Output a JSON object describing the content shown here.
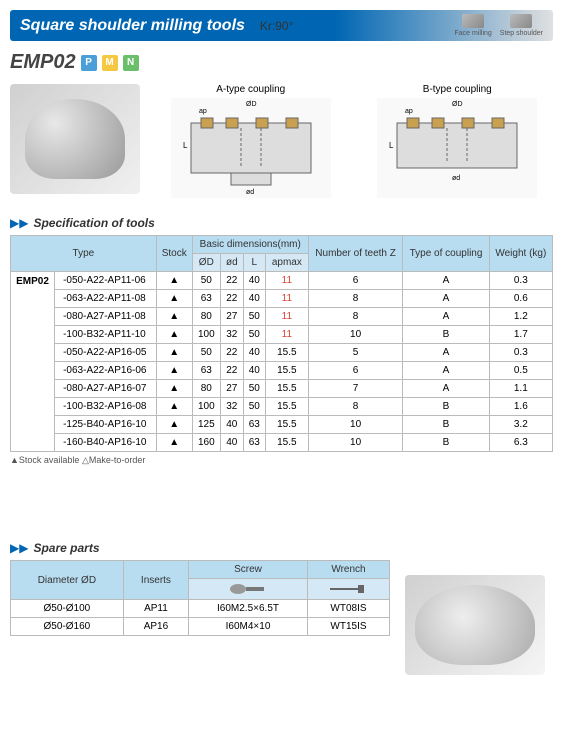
{
  "header": {
    "title": "Square shoulder milling tools",
    "sub": "Kr:90°",
    "icon1": "Face milling",
    "icon2": "Step shoulder"
  },
  "model": {
    "name": "EMP02",
    "badges": [
      "P",
      "M",
      "N"
    ]
  },
  "diagrams": {
    "a": "A-type coupling",
    "b": "B-type coupling"
  },
  "spec": {
    "title": "Specification of tools",
    "headers": {
      "type": "Type",
      "stock": "Stock",
      "basic": "Basic dimensions(mm)",
      "D": "ØD",
      "d": "ød",
      "L": "L",
      "ap": "apmax",
      "teeth": "Number of teeth Z",
      "coupling": "Type of coupling",
      "weight": "Weight (kg)"
    },
    "family": "EMP02",
    "rows": [
      {
        "code": "-050-A22-AP11-06",
        "stock": "▲",
        "D": "50",
        "d": "22",
        "L": "40",
        "ap": "11",
        "apred": true,
        "z": "6",
        "c": "A",
        "w": "0.3"
      },
      {
        "code": "-063-A22-AP11-08",
        "stock": "▲",
        "D": "63",
        "d": "22",
        "L": "40",
        "ap": "11",
        "apred": true,
        "z": "8",
        "c": "A",
        "w": "0.6"
      },
      {
        "code": "-080-A27-AP11-08",
        "stock": "▲",
        "D": "80",
        "d": "27",
        "L": "50",
        "ap": "11",
        "apred": true,
        "z": "8",
        "c": "A",
        "w": "1.2"
      },
      {
        "code": "-100-B32-AP11-10",
        "stock": "▲",
        "D": "100",
        "d": "32",
        "L": "50",
        "ap": "11",
        "apred": true,
        "z": "10",
        "c": "B",
        "w": "1.7"
      },
      {
        "code": "-050-A22-AP16-05",
        "stock": "▲",
        "D": "50",
        "d": "22",
        "L": "40",
        "ap": "15.5",
        "z": "5",
        "c": "A",
        "w": "0.3"
      },
      {
        "code": "-063-A22-AP16-06",
        "stock": "▲",
        "D": "63",
        "d": "22",
        "L": "40",
        "ap": "15.5",
        "z": "6",
        "c": "A",
        "w": "0.5"
      },
      {
        "code": "-080-A27-AP16-07",
        "stock": "▲",
        "D": "80",
        "d": "27",
        "L": "50",
        "ap": "15.5",
        "z": "7",
        "c": "A",
        "w": "1.1"
      },
      {
        "code": "-100-B32-AP16-08",
        "stock": "▲",
        "D": "100",
        "d": "32",
        "L": "50",
        "ap": "15.5",
        "z": "8",
        "c": "B",
        "w": "1.6"
      },
      {
        "code": "-125-B40-AP16-10",
        "stock": "▲",
        "D": "125",
        "d": "40",
        "L": "63",
        "ap": "15.5",
        "z": "10",
        "c": "B",
        "w": "3.2"
      },
      {
        "code": "-160-B40-AP16-10",
        "stock": "▲",
        "D": "160",
        "d": "40",
        "L": "63",
        "ap": "15.5",
        "z": "10",
        "c": "B",
        "w": "6.3"
      }
    ],
    "footnote": "▲Stock available     △Make-to-order"
  },
  "spare": {
    "title": "Spare parts",
    "headers": {
      "dia": "Diameter ØD",
      "inserts": "Inserts",
      "screw": "Screw",
      "wrench": "Wrench"
    },
    "rows": [
      {
        "dia": "Ø50-Ø100",
        "ins": "AP11",
        "scr": "I60M2.5×6.5T",
        "wr": "WT08IS"
      },
      {
        "dia": "Ø50-Ø160",
        "ins": "AP16",
        "scr": "I60M4×10",
        "wr": "WT15IS"
      }
    ]
  }
}
